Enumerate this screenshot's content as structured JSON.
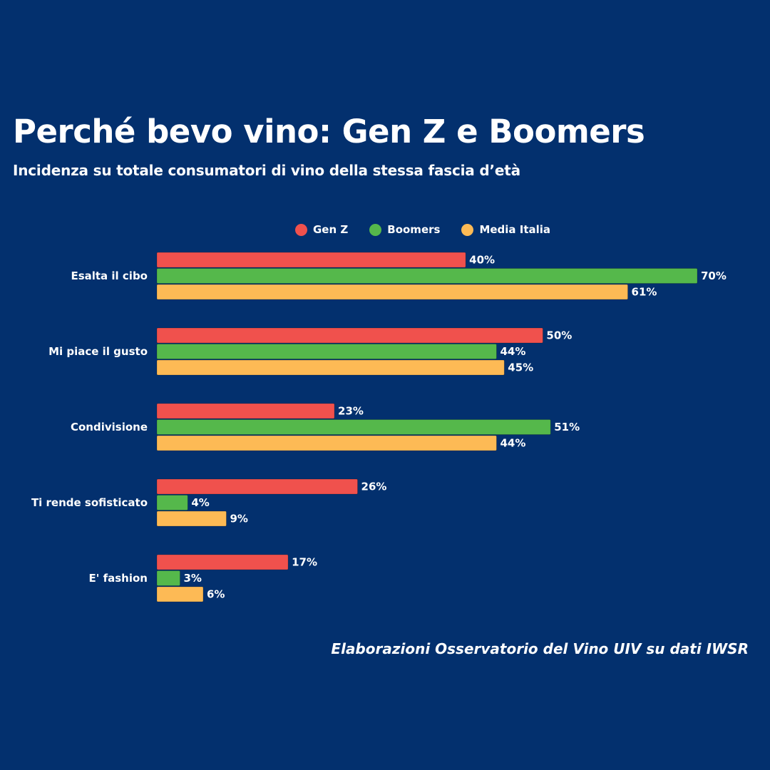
{
  "header": {
    "title": "Perché bevo vino: Gen Z e Boomers",
    "subtitle": "Incidenza su totale consumatori di vino della stessa fascia d’età"
  },
  "footer": {
    "source": "Elaborazioni Osservatorio del Vino UIV su dati IWSR"
  },
  "chart_data": {
    "type": "bar",
    "orientation": "horizontal",
    "title": "Perché bevo vino: Gen Z e Boomers",
    "subtitle": "Incidenza su totale consumatori di vino della stessa fascia d’età",
    "xlabel": "",
    "ylabel": "",
    "xlim": [
      0,
      70
    ],
    "grid": false,
    "legend_position": "top-center",
    "value_suffix": "%",
    "categories": [
      "Esalta il cibo",
      "Mi piace il gusto",
      "Condivisione",
      "Ti rende sofisticato",
      "E' fashion"
    ],
    "series": [
      {
        "name": "Gen Z",
        "color": "#f0514d",
        "values": [
          40,
          50,
          23,
          26,
          17
        ]
      },
      {
        "name": "Boomers",
        "color": "#55b84b",
        "values": [
          70,
          44,
          51,
          4,
          3
        ]
      },
      {
        "name": "Media Italia",
        "color": "#fdba55",
        "values": [
          61,
          45,
          44,
          9,
          6
        ]
      }
    ],
    "source": "Elaborazioni Osservatorio del Vino UIV su dati IWSR"
  }
}
